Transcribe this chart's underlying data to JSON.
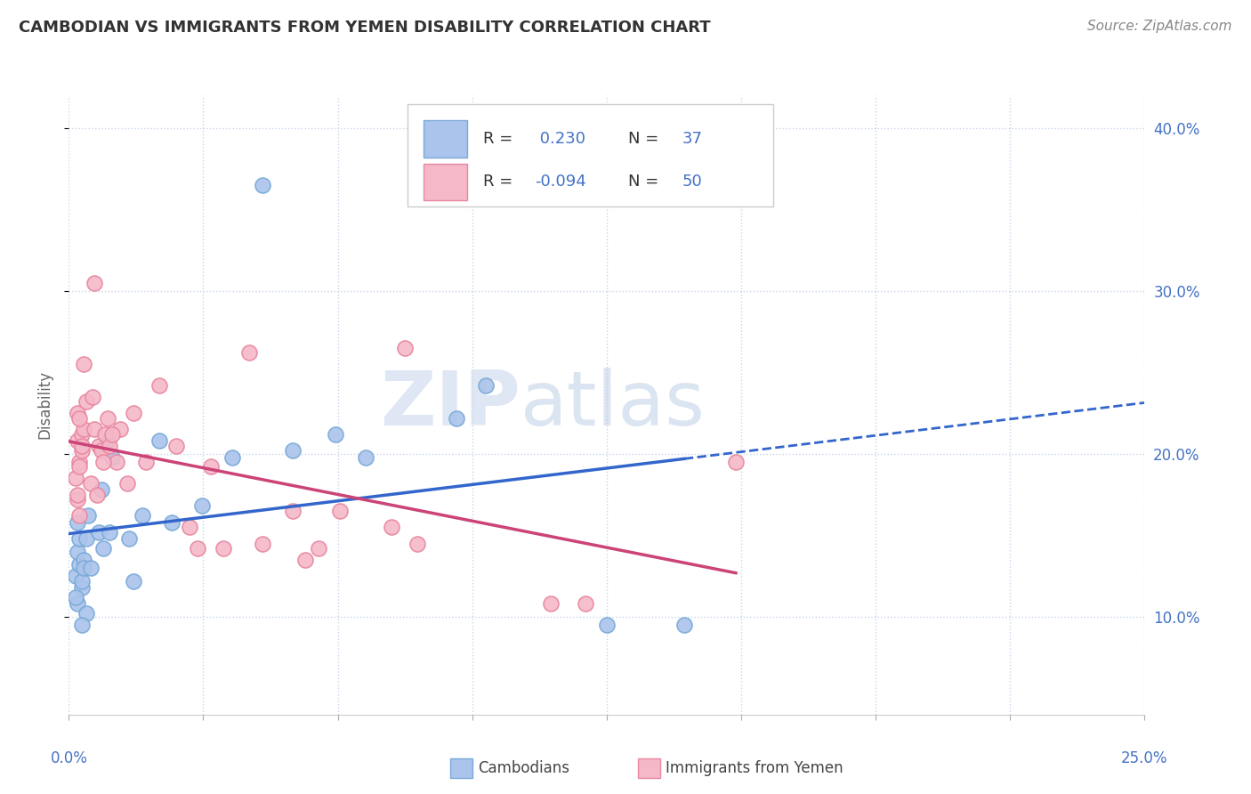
{
  "title": "CAMBODIAN VS IMMIGRANTS FROM YEMEN DISABILITY CORRELATION CHART",
  "source": "Source: ZipAtlas.com",
  "ylabel": "Disability",
  "xlim": [
    0.0,
    25.0
  ],
  "ylim": [
    4.0,
    42.0
  ],
  "yticks": [
    10.0,
    20.0,
    30.0,
    40.0
  ],
  "xticks": [
    0.0,
    3.125,
    6.25,
    9.375,
    12.5,
    15.625,
    18.75,
    21.875,
    25.0
  ],
  "cambodian_R": "0.230",
  "cambodian_N": "37",
  "yemen_R": "-0.094",
  "yemen_N": "50",
  "cambodian_color": "#aac4eb",
  "cambodian_edge": "#7aaad8",
  "yemen_color": "#f5b8c8",
  "yemen_edge": "#e888a0",
  "trend_cambodian_color": "#3366cc",
  "trend_yemen_color": "#cc4477",
  "watermark_zip": "ZIP",
  "watermark_atlas": "atlas",
  "bg_color": "#ffffff",
  "grid_color": "#c8d4e8",
  "tick_color": "#4472c4",
  "title_color": "#333333",
  "source_color": "#888888",
  "ylabel_color": "#666666",
  "legend_text_color": "#333333",
  "legend_value_color": "#4472c4",
  "cambodian_points": [
    [
      0.15,
      12.5
    ],
    [
      0.25,
      13.2
    ],
    [
      0.3,
      11.8
    ],
    [
      0.2,
      14.0
    ],
    [
      0.35,
      13.5
    ],
    [
      0.2,
      10.8
    ],
    [
      0.3,
      12.2
    ],
    [
      0.25,
      14.8
    ],
    [
      0.15,
      11.2
    ],
    [
      0.4,
      10.2
    ],
    [
      0.35,
      13.0
    ],
    [
      0.3,
      9.5
    ],
    [
      0.2,
      15.8
    ],
    [
      0.45,
      16.2
    ],
    [
      0.4,
      14.8
    ],
    [
      0.5,
      13.0
    ],
    [
      0.7,
      15.2
    ],
    [
      0.8,
      14.2
    ],
    [
      0.75,
      17.8
    ],
    [
      0.9,
      20.8
    ],
    [
      1.0,
      19.8
    ],
    [
      0.95,
      15.2
    ],
    [
      1.4,
      14.8
    ],
    [
      1.5,
      12.2
    ],
    [
      1.7,
      16.2
    ],
    [
      2.1,
      20.8
    ],
    [
      2.4,
      15.8
    ],
    [
      3.1,
      16.8
    ],
    [
      3.8,
      19.8
    ],
    [
      4.5,
      36.5
    ],
    [
      5.2,
      20.2
    ],
    [
      6.2,
      21.2
    ],
    [
      6.9,
      19.8
    ],
    [
      9.0,
      22.2
    ],
    [
      9.7,
      24.2
    ],
    [
      12.5,
      9.5
    ],
    [
      14.3,
      9.5
    ]
  ],
  "yemen_points": [
    [
      0.15,
      18.5
    ],
    [
      0.2,
      20.8
    ],
    [
      0.25,
      19.5
    ],
    [
      0.2,
      17.2
    ],
    [
      0.3,
      21.2
    ],
    [
      0.25,
      19.2
    ],
    [
      0.2,
      22.5
    ],
    [
      0.3,
      20.2
    ],
    [
      0.35,
      21.5
    ],
    [
      0.25,
      16.2
    ],
    [
      0.2,
      17.5
    ],
    [
      0.3,
      20.5
    ],
    [
      0.35,
      25.5
    ],
    [
      0.25,
      22.2
    ],
    [
      0.4,
      23.2
    ],
    [
      0.5,
      18.2
    ],
    [
      0.55,
      23.5
    ],
    [
      0.6,
      21.5
    ],
    [
      0.65,
      17.5
    ],
    [
      0.7,
      20.5
    ],
    [
      0.75,
      20.2
    ],
    [
      0.85,
      21.2
    ],
    [
      0.9,
      22.2
    ],
    [
      0.95,
      20.5
    ],
    [
      1.1,
      19.5
    ],
    [
      1.2,
      21.5
    ],
    [
      1.35,
      18.2
    ],
    [
      1.5,
      22.5
    ],
    [
      1.8,
      19.5
    ],
    [
      2.1,
      24.2
    ],
    [
      2.5,
      20.5
    ],
    [
      2.8,
      15.5
    ],
    [
      3.0,
      14.2
    ],
    [
      3.3,
      19.2
    ],
    [
      3.6,
      14.2
    ],
    [
      4.2,
      26.2
    ],
    [
      4.5,
      14.5
    ],
    [
      5.2,
      16.5
    ],
    [
      5.5,
      13.5
    ],
    [
      5.8,
      14.2
    ],
    [
      6.3,
      16.5
    ],
    [
      7.5,
      15.5
    ],
    [
      7.8,
      26.5
    ],
    [
      8.1,
      14.5
    ],
    [
      0.6,
      30.5
    ],
    [
      0.8,
      19.5
    ],
    [
      1.0,
      21.2
    ],
    [
      11.2,
      10.8
    ],
    [
      12.0,
      10.8
    ],
    [
      15.5,
      19.5
    ]
  ]
}
